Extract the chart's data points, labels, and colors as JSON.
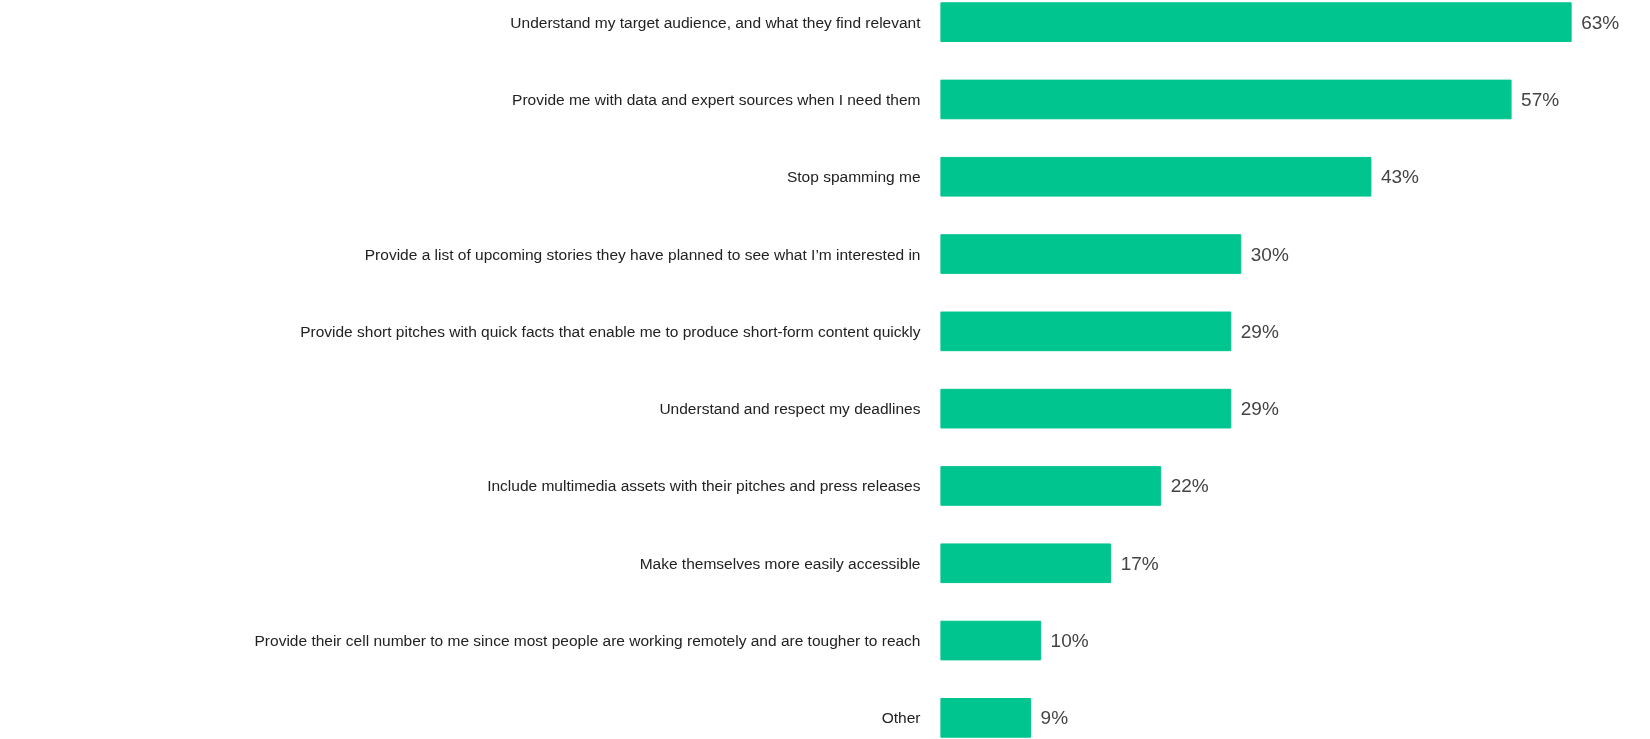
{
  "chart_data": {
    "type": "bar",
    "orientation": "horizontal",
    "color": "#00c58e",
    "categories": [
      "Understand my target audience, and what they find relevant",
      "Provide me with data and expert sources when I need them",
      "Stop spamming me",
      "Provide a list of upcoming stories they have planned to see what I’m interested in",
      "Provide short pitches with quick facts that enable me to produce short-form content quickly",
      "Understand and respect my deadlines",
      "Include multimedia assets with their pitches and press releases",
      "Make themselves more easily accessible",
      "Provide their cell number to me since most people are working remotely and are tougher to reach",
      "Other"
    ],
    "values": [
      63,
      57,
      43,
      30,
      29,
      29,
      22,
      17,
      10,
      9
    ],
    "value_labels": [
      "63%",
      "57%",
      "43%",
      "30%",
      "29%",
      "29%",
      "22%",
      "17%",
      "10%",
      "9%"
    ]
  }
}
